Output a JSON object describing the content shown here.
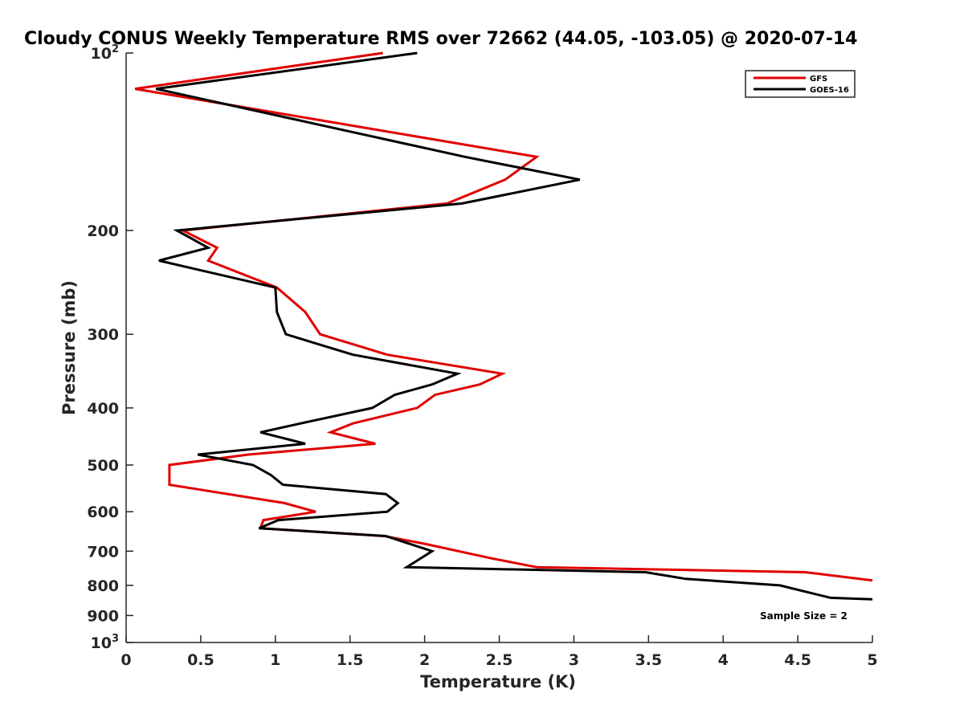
{
  "chart_data": {
    "type": "line",
    "title": "Cloudy CONUS Weekly Temperature RMS over 72662 (44.05, -103.05) @ 2020-07-14",
    "xlabel": "Temperature (K)",
    "ylabel": "Pressure (mb)",
    "xlim": [
      0,
      5
    ],
    "ylim": [
      100,
      1000
    ],
    "y_scale": "log",
    "y_reversed": true,
    "grid": false,
    "legend_position": "top-right",
    "x_ticks": [
      "0",
      "0.5",
      "1",
      "1.5",
      "2",
      "2.5",
      "3",
      "3.5",
      "4",
      "4.5",
      "5"
    ],
    "y_ticks": [
      {
        "value": 100,
        "base": "10",
        "exp": "2"
      },
      {
        "value": 200,
        "label": "200"
      },
      {
        "value": 300,
        "label": "300"
      },
      {
        "value": 400,
        "label": "400"
      },
      {
        "value": 500,
        "label": "500"
      },
      {
        "value": 600,
        "label": "600"
      },
      {
        "value": 700,
        "label": "700"
      },
      {
        "value": 800,
        "label": "800"
      },
      {
        "value": 900,
        "label": "900"
      },
      {
        "value": 1000,
        "base": "10",
        "exp": "3"
      }
    ],
    "annotation": "Sample Size = 2",
    "series": [
      {
        "name": "GFS",
        "color": "#e00000",
        "points": [
          [
            1.72,
            100
          ],
          [
            0.06,
            115
          ],
          [
            2.75,
            150
          ],
          [
            2.54,
            164
          ],
          [
            2.15,
            180
          ],
          [
            0.38,
            200
          ],
          [
            0.61,
            214
          ],
          [
            0.55,
            225
          ],
          [
            1.01,
            250
          ],
          [
            1.2,
            275
          ],
          [
            1.3,
            300
          ],
          [
            1.75,
            325
          ],
          [
            2.52,
            350
          ],
          [
            2.37,
            365
          ],
          [
            2.07,
            380
          ],
          [
            1.95,
            400
          ],
          [
            1.52,
            425
          ],
          [
            1.37,
            440
          ],
          [
            1.67,
            460
          ],
          [
            0.82,
            480
          ],
          [
            0.29,
            500
          ],
          [
            0.29,
            540
          ],
          [
            1.06,
            580
          ],
          [
            1.27,
            600
          ],
          [
            0.92,
            620
          ],
          [
            0.9,
            640
          ],
          [
            1.73,
            660
          ],
          [
            2.0,
            680
          ],
          [
            2.45,
            720
          ],
          [
            2.75,
            745
          ],
          [
            4.55,
            760
          ],
          [
            5.0,
            785
          ]
        ]
      },
      {
        "name": "GOES-16",
        "color": "#000000",
        "points": [
          [
            1.95,
            100
          ],
          [
            0.2,
            115
          ],
          [
            2.27,
            150
          ],
          [
            3.04,
            164
          ],
          [
            2.25,
            180
          ],
          [
            0.34,
            200
          ],
          [
            0.55,
            214
          ],
          [
            0.22,
            225
          ],
          [
            1.0,
            250
          ],
          [
            1.01,
            275
          ],
          [
            1.07,
            300
          ],
          [
            1.52,
            325
          ],
          [
            2.22,
            350
          ],
          [
            2.05,
            365
          ],
          [
            1.8,
            380
          ],
          [
            1.65,
            400
          ],
          [
            1.17,
            425
          ],
          [
            0.9,
            440
          ],
          [
            1.2,
            460
          ],
          [
            0.48,
            480
          ],
          [
            0.85,
            500
          ],
          [
            0.97,
            520
          ],
          [
            1.05,
            540
          ],
          [
            1.74,
            560
          ],
          [
            1.82,
            580
          ],
          [
            1.75,
            600
          ],
          [
            1.02,
            620
          ],
          [
            0.89,
            640
          ],
          [
            1.74,
            660
          ],
          [
            2.05,
            700
          ],
          [
            1.88,
            745
          ],
          [
            3.48,
            760
          ],
          [
            3.75,
            780
          ],
          [
            4.38,
            800
          ],
          [
            4.55,
            820
          ],
          [
            4.72,
            840
          ],
          [
            5.0,
            845
          ]
        ]
      }
    ]
  }
}
